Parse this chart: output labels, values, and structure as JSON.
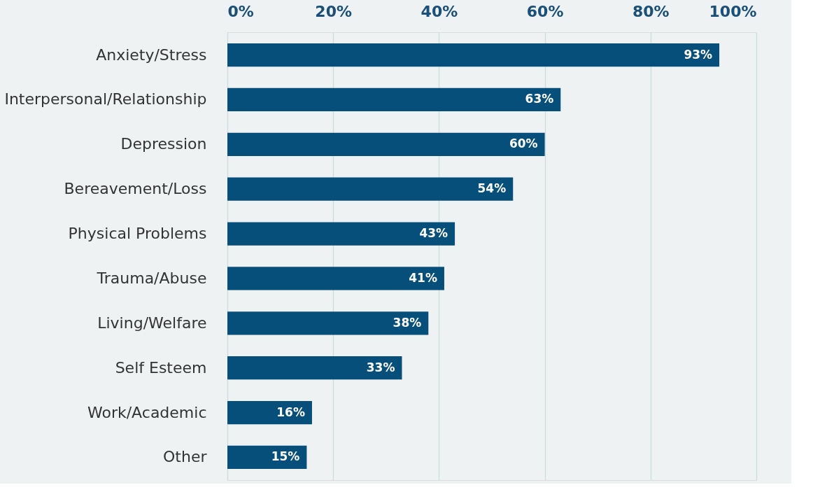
{
  "chart_data": {
    "type": "bar",
    "orientation": "horizontal",
    "categories": [
      "Anxiety/Stress",
      "Interpersonal/Relationship",
      "Depression",
      "Bereavement/Loss",
      "Physical Problems",
      "Trauma/Abuse",
      "Living/Welfare",
      "Self Esteem",
      "Work/Academic",
      "Other"
    ],
    "values": [
      93,
      63,
      60,
      54,
      43,
      41,
      38,
      33,
      16,
      15
    ],
    "value_labels": [
      "93%",
      "63%",
      "60%",
      "54%",
      "43%",
      "41%",
      "38%",
      "33%",
      "16%",
      "15%"
    ],
    "color": "#074f7b",
    "xlim": [
      0,
      100
    ],
    "xticks": [
      {
        "value": 0,
        "label": "0%"
      },
      {
        "value": 20,
        "label": "20%"
      },
      {
        "value": 40,
        "label": "40%"
      },
      {
        "value": 60,
        "label": "60%"
      },
      {
        "value": 80,
        "label": "80%"
      },
      {
        "value": 100,
        "label": "100%"
      }
    ],
    "grid": "x"
  }
}
